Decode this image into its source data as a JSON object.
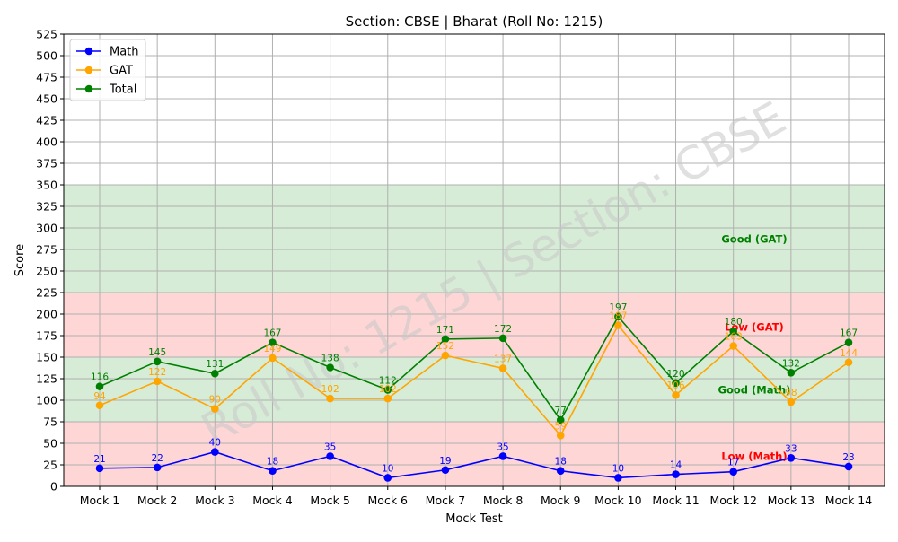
{
  "chart_data": {
    "type": "line",
    "title": "Section: CBSE | Bharat (Roll No: 1215)",
    "xlabel": "Mock Test",
    "ylabel": "Score",
    "ylim": [
      0,
      525
    ],
    "ytick_step": 25,
    "grid": true,
    "legend_position": "top-left",
    "categories": [
      "Mock 1",
      "Mock 2",
      "Mock 3",
      "Mock 4",
      "Mock 5",
      "Mock 6",
      "Mock 7",
      "Mock 8",
      "Mock 9",
      "Mock 10",
      "Mock 11",
      "Mock 12",
      "Mock 13",
      "Mock 14"
    ],
    "series": [
      {
        "name": "Math",
        "color": "#0000ff",
        "values": [
          21,
          22,
          40,
          18,
          35,
          10,
          19,
          35,
          18,
          10,
          14,
          17,
          33,
          23
        ]
      },
      {
        "name": "GAT",
        "color": "#ffa500",
        "values": [
          94,
          122,
          90,
          149,
          102,
          102,
          152,
          137,
          59,
          187,
          106,
          163,
          98,
          144
        ]
      },
      {
        "name": "Total",
        "color": "#008000",
        "values": [
          116,
          145,
          131,
          167,
          138,
          112,
          171,
          172,
          77,
          197,
          120,
          180,
          132,
          167
        ]
      }
    ],
    "bands": [
      {
        "from": 0,
        "to": 75,
        "color": "#ffc8c8",
        "label": "Low (Math)",
        "label_color": "#ff0000",
        "label_y": 35
      },
      {
        "from": 75,
        "to": 150,
        "color": "#c8e6c8",
        "label": "Good (Math)",
        "label_color": "#008000",
        "label_y": 112
      },
      {
        "from": 150,
        "to": 225,
        "color": "#ffc8c8",
        "label": "Low (GAT)",
        "label_color": "#ff0000",
        "label_y": 185
      },
      {
        "from": 225,
        "to": 350,
        "color": "#c8e6c8",
        "label": "Good (GAT)",
        "label_color": "#008000",
        "label_y": 287
      }
    ],
    "watermark": "Roll No: 1215 | Section: CBSE"
  }
}
